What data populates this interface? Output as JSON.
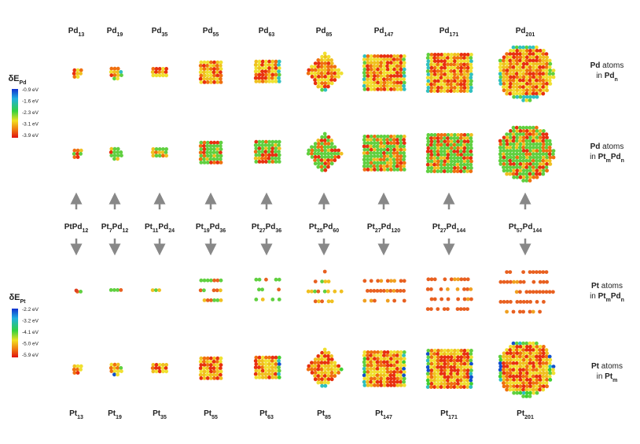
{
  "column_labels": [
    [
      {
        "t": "Pd"
      },
      {
        "sub": "13"
      }
    ],
    [
      {
        "t": "Pd"
      },
      {
        "sub": "19"
      }
    ],
    [
      {
        "t": "Pd"
      },
      {
        "sub": "35"
      }
    ],
    [
      {
        "t": "Pd"
      },
      {
        "sub": "55"
      }
    ],
    [
      {
        "t": "Pd"
      },
      {
        "sub": "63"
      }
    ],
    [
      {
        "t": "Pd"
      },
      {
        "sub": "85"
      }
    ],
    [
      {
        "t": "Pd"
      },
      {
        "sub": "147"
      }
    ],
    [
      {
        "t": "Pd"
      },
      {
        "sub": "171"
      }
    ],
    [
      {
        "t": "Pd"
      },
      {
        "sub": "201"
      }
    ]
  ],
  "middle_labels": [
    [
      {
        "t": "PtPd"
      },
      {
        "sub": "12"
      }
    ],
    [
      {
        "t": "Pt"
      },
      {
        "sub": "7"
      },
      {
        "t": "Pd"
      },
      {
        "sub": "12"
      }
    ],
    [
      {
        "t": "Pt"
      },
      {
        "sub": "11"
      },
      {
        "t": "Pd"
      },
      {
        "sub": "24"
      }
    ],
    [
      {
        "t": "Pt"
      },
      {
        "sub": "19"
      },
      {
        "t": "Pd"
      },
      {
        "sub": "36"
      }
    ],
    [
      {
        "t": "Pt"
      },
      {
        "sub": "27"
      },
      {
        "t": "Pd"
      },
      {
        "sub": "36"
      }
    ],
    [
      {
        "t": "Pt"
      },
      {
        "sub": "25"
      },
      {
        "t": "Pd"
      },
      {
        "sub": "60"
      }
    ],
    [
      {
        "t": "Pt"
      },
      {
        "sub": "27"
      },
      {
        "t": "Pd"
      },
      {
        "sub": "120"
      }
    ],
    [
      {
        "t": "Pt"
      },
      {
        "sub": "27"
      },
      {
        "t": "Pd"
      },
      {
        "sub": "144"
      }
    ],
    [
      {
        "t": "Pt"
      },
      {
        "sub": "57"
      },
      {
        "t": "Pd"
      },
      {
        "sub": "144"
      }
    ]
  ],
  "bottom_labels": [
    [
      {
        "t": "Pt"
      },
      {
        "sub": "13"
      }
    ],
    [
      {
        "t": "Pt"
      },
      {
        "sub": "19"
      }
    ],
    [
      {
        "t": "Pt"
      },
      {
        "sub": "35"
      }
    ],
    [
      {
        "t": "Pt"
      },
      {
        "sub": "55"
      }
    ],
    [
      {
        "t": "Pt"
      },
      {
        "sub": "63"
      }
    ],
    [
      {
        "t": "Pt"
      },
      {
        "sub": "85"
      }
    ],
    [
      {
        "t": "Pt"
      },
      {
        "sub": "147"
      }
    ],
    [
      {
        "t": "Pt"
      },
      {
        "sub": "171"
      }
    ],
    [
      {
        "t": "Pt"
      },
      {
        "sub": "201"
      }
    ]
  ],
  "legend_pd": {
    "title": [
      {
        "t": "δE"
      },
      {
        "sub": "Pd"
      }
    ],
    "labels": [
      "-0.9 eV",
      "-1.6 eV",
      "-2.3 eV",
      "-3.1 eV",
      "-3.9 eV"
    ]
  },
  "legend_pt": {
    "title": [
      {
        "t": "δE"
      },
      {
        "sub": "Pt"
      }
    ],
    "labels": [
      "-2.2 eV",
      "-3.2 eV",
      "-4.1 eV",
      "-5.0 eV",
      "-5.9 eV"
    ]
  },
  "row_labels": [
    {
      "line1": [
        {
          "b": "Pd"
        },
        {
          "t": " atoms"
        }
      ],
      "line2": [
        {
          "t": "in "
        },
        {
          "b": "Pd"
        },
        {
          "bsub": "n"
        }
      ]
    },
    {
      "line1": [
        {
          "b": "Pd"
        },
        {
          "t": " atoms"
        }
      ],
      "line2": [
        {
          "t": "in "
        },
        {
          "b": "Pt"
        },
        {
          "bsub": "m"
        },
        {
          "b": "Pd"
        },
        {
          "bsub": "n"
        }
      ]
    },
    {
      "line1": [
        {
          "b": "Pt"
        },
        {
          "t": " atoms"
        }
      ],
      "line2": [
        {
          "t": "in "
        },
        {
          "b": "Pt"
        },
        {
          "bsub": "m"
        },
        {
          "b": "Pd"
        },
        {
          "bsub": "n"
        }
      ]
    },
    {
      "line1": [
        {
          "b": "Pt"
        },
        {
          "t": " atoms"
        }
      ],
      "line2": [
        {
          "t": "in "
        },
        {
          "b": "Pt"
        },
        {
          "bsub": "m"
        }
      ]
    }
  ]
}
